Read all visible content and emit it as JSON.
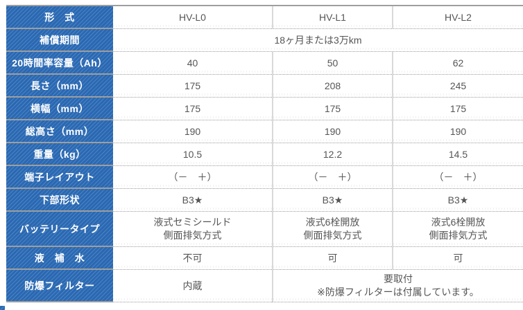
{
  "palette": {
    "header_blue": "#2b68b1",
    "header_stripe_blue": "#4a84c5",
    "solid_border_gray": "#9e9e9e",
    "column_divider_gray": "#d9d9d9",
    "dotted_line_gray": "#999999",
    "value_text_gray": "#555555",
    "header_text": "#ffffff"
  },
  "table": {
    "rows": [
      {
        "label": "形　式",
        "values": [
          "HV-L0",
          "HV-L1",
          "HV-L2"
        ]
      },
      {
        "label": "補償期間",
        "merged": "18ヶ月または3万km"
      },
      {
        "label": "20時間率容量（Ah）",
        "values": [
          "40",
          "50",
          "62"
        ]
      },
      {
        "label": "長さ（mm）",
        "values": [
          "175",
          "208",
          "245"
        ]
      },
      {
        "label": "横幅（mm）",
        "values": [
          "175",
          "175",
          "175"
        ]
      },
      {
        "label": "総高さ（mm）",
        "values": [
          "190",
          "190",
          "190"
        ]
      },
      {
        "label": "重量（kg）",
        "values": [
          "10.5",
          "12.2",
          "14.5"
        ]
      },
      {
        "label": "端子レイアウト",
        "values": [
          "（－　＋）",
          "（－　＋）",
          "（－　＋）"
        ]
      },
      {
        "label": "下部形状",
        "values": [
          "B3★",
          "B3★",
          "B3★"
        ]
      },
      {
        "label": "バッテリータイプ",
        "values": [
          {
            "line1": "液式セミシールド",
            "line2": "側面排気方式"
          },
          {
            "line1": "液式6栓開放",
            "line2": "側面排気方式"
          },
          {
            "line1": "液式6栓開放",
            "line2": "側面排気方式"
          }
        ]
      },
      {
        "label": "液　補　水",
        "values": [
          "不可",
          "可",
          "可"
        ]
      },
      {
        "label": "防爆フィルター",
        "values": [
          "内蔵"
        ],
        "merged": {
          "line1": "要取付",
          "line2": "※防爆フィルターは付属しています。"
        }
      }
    ]
  }
}
